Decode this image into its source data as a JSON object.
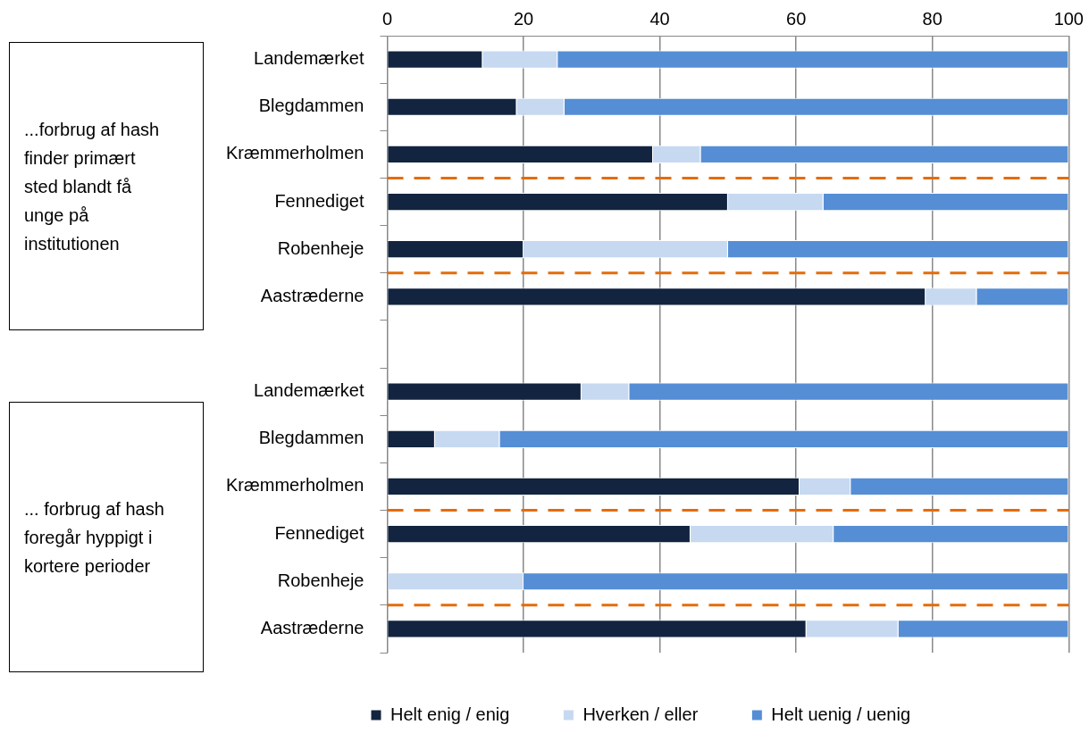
{
  "chart_data": {
    "type": "bar",
    "orientation": "horizontal",
    "stacked": true,
    "categories": [
      "Landemærket",
      "Blegdammen",
      "Kræmmerholmen",
      "Fennediget",
      "Robenheje",
      "Aastræderne",
      null,
      "Landemærket",
      "Blegdammen",
      "Kræmmerholmen",
      "Fennediget",
      "Robenheje",
      "Aastræderne"
    ],
    "series": [
      {
        "name": "Helt enig / enig",
        "color": "#12243f",
        "values": [
          14,
          19,
          39,
          50,
          20,
          79,
          null,
          28.5,
          7,
          60.5,
          44.5,
          0,
          61.5
        ]
      },
      {
        "name": "Hverken / eller",
        "color": "#c6d9f1",
        "values": [
          11,
          7,
          7,
          14,
          30,
          7.5,
          null,
          7,
          9.5,
          7.5,
          21,
          20,
          13.5
        ]
      },
      {
        "name": "Helt uenig / uenig",
        "color": "#558ed5",
        "values": [
          75,
          74,
          54,
          36,
          50,
          13.5,
          null,
          64.5,
          83.5,
          32,
          34.5,
          80,
          25
        ]
      }
    ],
    "xlim": [
      0,
      100
    ],
    "xticks": [
      0,
      20,
      40,
      60,
      80,
      100
    ],
    "grid": "x",
    "legend": "bottom",
    "annotations": [
      "...forbrug af hash finder primært sted blandt få unge på institutionen",
      "... forbrug af hash foregår hyppigt i kortere perioder"
    ]
  }
}
